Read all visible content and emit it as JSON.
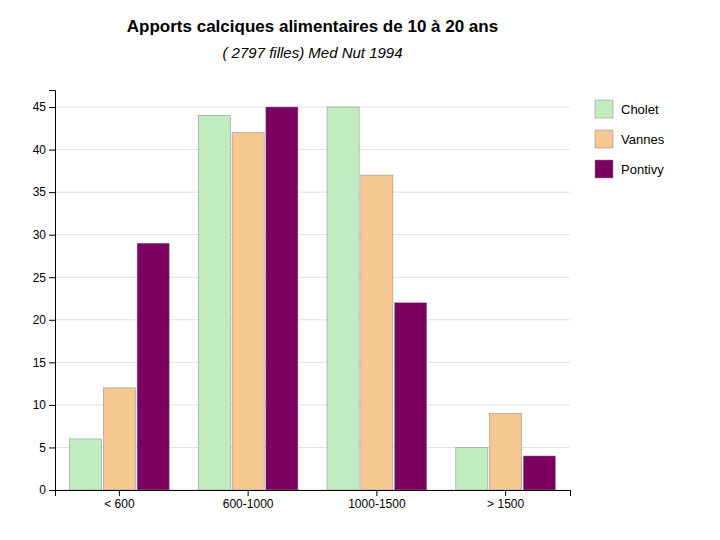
{
  "chart_data": {
    "type": "bar",
    "title": "Apports calciques alimentaires de 10 à 20 ans",
    "subtitle": "( 2797 filles) Med Nut 1994",
    "categories": [
      "< 600",
      "600-1000",
      "1000-1500",
      "> 1500"
    ],
    "series": [
      {
        "name": "Cholet",
        "color": "#c0ecc0",
        "values": [
          6,
          44,
          45,
          5
        ]
      },
      {
        "name": "Vannes",
        "color": "#f5c891",
        "values": [
          12,
          42,
          37,
          9
        ]
      },
      {
        "name": "Pontivy",
        "color": "#7b0060",
        "values": [
          29,
          45,
          22,
          4
        ]
      }
    ],
    "ylim": [
      0,
      47
    ],
    "yticks": [
      0,
      5,
      10,
      15,
      20,
      25,
      30,
      35,
      40,
      45
    ],
    "grid": true,
    "legend": "right"
  }
}
